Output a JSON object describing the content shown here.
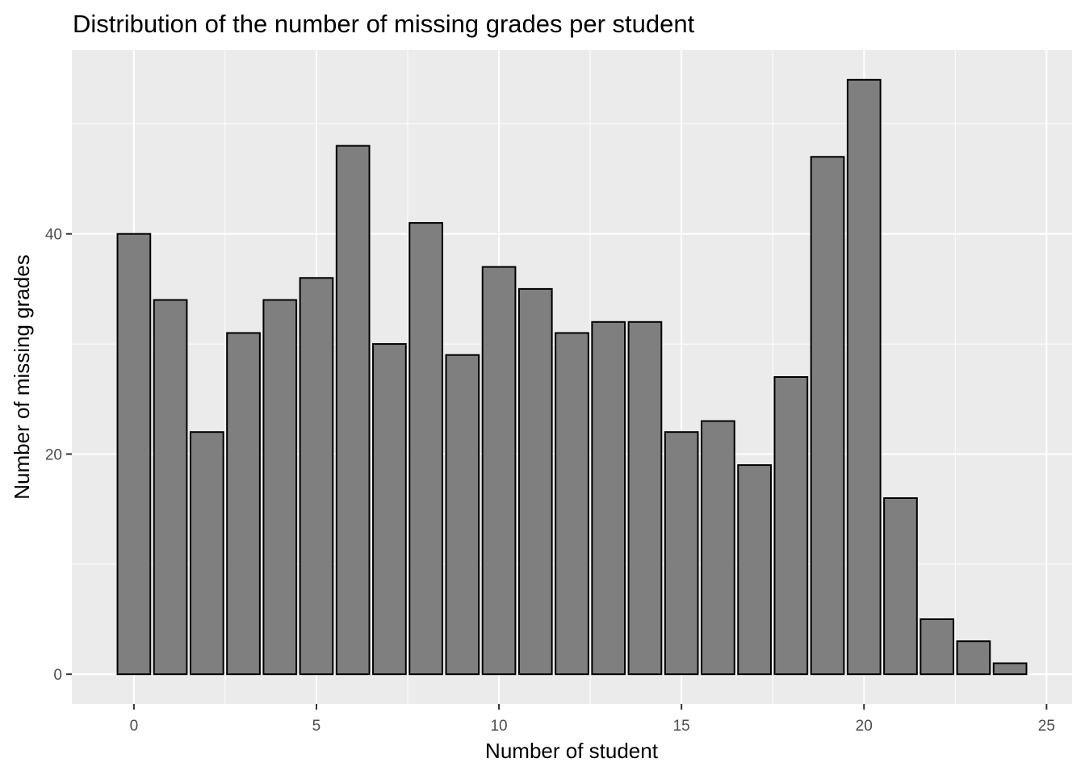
{
  "chart_data": {
    "type": "bar",
    "title": "Distribution of the number of missing grades per student",
    "xlabel": "Number of student",
    "ylabel": "Number of missing grades",
    "x": [
      0,
      1,
      2,
      3,
      4,
      5,
      6,
      7,
      8,
      9,
      10,
      11,
      12,
      13,
      14,
      15,
      16,
      17,
      18,
      19,
      20,
      21,
      22,
      23,
      24
    ],
    "values": [
      40,
      34,
      22,
      31,
      34,
      36,
      48,
      30,
      41,
      29,
      37,
      35,
      31,
      32,
      32,
      22,
      23,
      19,
      27,
      47,
      54,
      16,
      5,
      3,
      1
    ],
    "xlim": [
      -1.7,
      25.7
    ],
    "ylim": [
      -2.7,
      56.7
    ],
    "x_ticks": [
      0,
      5,
      10,
      15,
      20,
      25
    ],
    "x_tick_labels": [
      "0",
      "5",
      "10",
      "15",
      "20",
      "25"
    ],
    "y_ticks": [
      0,
      20,
      40
    ],
    "y_tick_labels": [
      "0",
      "20",
      "40"
    ],
    "grid": true,
    "legend": "none",
    "colors": {
      "bar_fill": "#7f7f7f",
      "bar_stroke": "#000000",
      "panel_bg": "#ebebeb",
      "grid": "#ffffff"
    }
  }
}
